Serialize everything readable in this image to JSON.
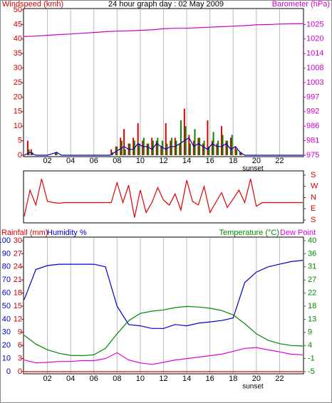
{
  "chart_data": [
    {
      "type": "bar",
      "title": "24 hour graph day : 02 May 2009",
      "ylabel": "Windspeed (kmh)",
      "y2label": "Barometer (hPa)",
      "y_color": "#cc0000",
      "y2_color": "#cc00cc",
      "grid": true,
      "xlim": [
        0,
        24
      ],
      "xticks": [
        {
          "value": 2,
          "label": "02"
        },
        {
          "value": 4,
          "label": "04"
        },
        {
          "value": 6,
          "label": "06"
        },
        {
          "value": 8,
          "label": "08"
        },
        10,
        12,
        14,
        16,
        18,
        20,
        22
      ],
      "sunset": {
        "value": 19.7,
        "label": "sunset"
      },
      "ylim": [
        0,
        50
      ],
      "yticks": [
        0,
        5,
        10,
        15,
        20,
        25,
        30,
        35,
        40,
        45,
        50
      ],
      "y2lim": [
        975,
        1030.6
      ],
      "y2ticks": [
        975,
        {
          "value": 980.6,
          "label": "981"
        },
        {
          "value": 986.1,
          "label": "986"
        },
        {
          "value": 991.7,
          "label": "992"
        },
        {
          "value": 997.2,
          "label": "997"
        },
        {
          "value": 1002.8,
          "label": "1003"
        },
        {
          "value": 1008.3,
          "label": "1008"
        },
        {
          "value": 1013.9,
          "label": "1014"
        },
        {
          "value": 1019.5,
          "label": "1020"
        },
        1025
      ],
      "series": [
        {
          "kind": "bar",
          "color": "#dd0000",
          "axis": "y",
          "x": [
            0.3,
            0.6,
            2.7,
            7.5,
            7.9,
            8.3,
            8.6,
            9.0,
            9.4,
            9.8,
            10.2,
            10.6,
            11.0,
            11.4,
            11.8,
            12.2,
            12.6,
            13.0,
            13.4,
            13.8,
            14.2,
            14.6,
            15.0,
            15.4,
            15.8,
            16.2,
            16.6,
            17.0,
            17.4,
            17.8,
            18.2,
            18.6
          ],
          "values": [
            5,
            2,
            1,
            2,
            3,
            6,
            9,
            4,
            6,
            11,
            5,
            4,
            6,
            5,
            3,
            11,
            5,
            6,
            4,
            16,
            7,
            5,
            6,
            4,
            12,
            5,
            4,
            10,
            5,
            6,
            3,
            1
          ]
        },
        {
          "kind": "bar",
          "color": "#008800",
          "axis": "y",
          "x": [
            0.4,
            0.7,
            2.8,
            7.6,
            8.0,
            8.4,
            8.7,
            9.1,
            9.5,
            9.9,
            10.3,
            10.7,
            11.1,
            11.5,
            11.9,
            12.3,
            12.7,
            13.1,
            13.5,
            13.9,
            14.3,
            14.7,
            15.1,
            15.5,
            15.9,
            16.3,
            16.7,
            17.1,
            17.5,
            17.9,
            18.3,
            18.7
          ],
          "values": [
            2,
            1,
            1,
            1,
            3,
            5,
            2,
            4,
            5,
            4,
            6,
            4,
            5,
            6,
            5,
            4,
            6,
            5,
            12,
            10,
            4,
            9,
            6,
            5,
            3,
            8,
            5,
            7,
            5,
            7,
            2,
            1
          ]
        },
        {
          "kind": "line",
          "color": "#0000cc",
          "axis": "y",
          "x": [
            0,
            0.5,
            1,
            2,
            2.8,
            3.2,
            7.4,
            7.8,
            8.2,
            8.6,
            9.0,
            9.4,
            9.8,
            10.2,
            10.6,
            11.0,
            11.4,
            11.8,
            12.2,
            12.6,
            13.0,
            13.4,
            13.8,
            14.2,
            14.6,
            15.0,
            15.4,
            15.8,
            16.2,
            16.6,
            17.0,
            17.4,
            17.8,
            18.2,
            18.6,
            19.0,
            24
          ],
          "values": [
            0,
            1,
            0,
            0,
            1,
            0,
            0,
            1,
            2,
            3,
            2,
            2,
            4,
            3,
            3,
            2,
            4,
            3,
            2,
            3,
            3,
            4,
            5,
            6,
            3,
            4,
            3,
            2,
            4,
            3,
            3,
            4,
            2,
            3,
            1,
            0,
            0
          ]
        },
        {
          "kind": "line",
          "color": "#cc00cc",
          "axis": "y2",
          "x": [
            0,
            1,
            2,
            3,
            4,
            5,
            6,
            7,
            8,
            9,
            10,
            11,
            12,
            13,
            14,
            15,
            16,
            17,
            18,
            19,
            20,
            21,
            22,
            23,
            24
          ],
          "values": [
            1020.4,
            1020.6,
            1020.9,
            1021.2,
            1021.4,
            1021.7,
            1022.0,
            1022.3,
            1022.5,
            1022.6,
            1022.8,
            1023.0,
            1023.4,
            1023.6,
            1023.6,
            1023.8,
            1024.0,
            1024.2,
            1024.4,
            1024.6,
            1024.9,
            1025.0,
            1025.2,
            1025.3,
            1025.4
          ]
        }
      ]
    },
    {
      "type": "line",
      "y_color": "#cc0000",
      "xlim": [
        0,
        24
      ],
      "ylim": [
        180,
        -180
      ],
      "yticks": [
        {
          "value": 180,
          "label": "S"
        },
        {
          "value": 90,
          "label": "E"
        },
        {
          "value": 0,
          "label": "N"
        },
        {
          "value": -90,
          "label": "W"
        },
        {
          "value": -180,
          "label": "S"
        }
      ],
      "series": [
        {
          "kind": "line",
          "color": "#dd0000",
          "axis": "y",
          "x": [
            0,
            0.5,
            1,
            1.5,
            2,
            2.5,
            3,
            3.5,
            4,
            4.5,
            5,
            5.5,
            6,
            6.5,
            7,
            7.5,
            8,
            8.5,
            9,
            9.5,
            10,
            10.5,
            11,
            11.5,
            12,
            12.5,
            13,
            13.5,
            14,
            14.5,
            15,
            15.5,
            16,
            16.5,
            17,
            17.5,
            18,
            18.5,
            19,
            19.5,
            20,
            20.5,
            21,
            21.5,
            22,
            22.5,
            23,
            23.5,
            24
          ],
          "values": [
            150,
            -60,
            60,
            -150,
            30,
            40,
            45,
            40,
            40,
            40,
            40,
            40,
            40,
            40,
            40,
            40,
            -120,
            40,
            -100,
            160,
            -60,
            120,
            40,
            -80,
            20,
            60,
            -30,
            100,
            -140,
            30,
            60,
            -90,
            120,
            40,
            -40,
            80,
            10,
            -60,
            40,
            -150,
            70,
            40,
            40,
            40,
            40,
            40,
            40,
            40,
            40
          ]
        }
      ]
    },
    {
      "type": "line",
      "grid": true,
      "xlim": [
        0,
        24
      ],
      "xticks": [
        {
          "value": 2,
          "label": "02"
        },
        {
          "value": 4,
          "label": "04"
        },
        {
          "value": 6,
          "label": "06"
        },
        {
          "value": 8,
          "label": "08"
        },
        10,
        12,
        14,
        16,
        18,
        20,
        22
      ],
      "sunset": {
        "value": 19.7,
        "label": "sunset"
      },
      "ylim": [
        0,
        30
      ],
      "yticks": [
        0,
        3,
        6,
        9,
        12,
        15,
        18,
        21,
        24,
        27,
        30
      ],
      "y_color": "#cc0000",
      "hlim": [
        0,
        100
      ],
      "hticks": [
        0,
        10,
        20,
        30,
        40,
        50,
        60,
        70,
        80,
        90,
        100
      ],
      "h_color": "#0000cc",
      "y2lim": [
        -5,
        40
      ],
      "y2ticks": [
        -5,
        {
          "value": -0.5,
          "label": "-1"
        },
        4,
        {
          "value": 8.5,
          "label": "9"
        },
        13,
        {
          "value": 17.5,
          "label": "18"
        },
        22,
        {
          "value": 26.5,
          "label": "27"
        },
        31,
        {
          "value": 35.5,
          "label": "36"
        },
        40
      ],
      "y2_color": "#008800",
      "series": [
        {
          "name": "Rainfall (mm)",
          "kind": "line",
          "color": "#dd0000",
          "axis": "y",
          "x": [
            0,
            1,
            2,
            3,
            4,
            5,
            6,
            7,
            8,
            9,
            10,
            11,
            12,
            13,
            14,
            15,
            16,
            17,
            18,
            19,
            20,
            21,
            22,
            23,
            24
          ],
          "values": [
            0,
            0,
            0,
            0,
            0,
            0,
            0,
            0,
            0,
            0,
            0,
            0,
            0,
            0,
            0,
            0,
            0,
            0,
            0,
            0,
            0,
            0,
            0,
            0,
            0
          ]
        },
        {
          "name": "Humidity %",
          "kind": "line",
          "color": "#0000cc",
          "axis": "h",
          "x": [
            0,
            1,
            2,
            3,
            4,
            5,
            6,
            7,
            8,
            9,
            10,
            11,
            12,
            13,
            14,
            15,
            16,
            17,
            18,
            19,
            20,
            21,
            22,
            23,
            24
          ],
          "values": [
            55,
            78,
            81,
            82,
            82,
            82,
            82,
            80,
            50,
            36,
            35,
            33,
            33,
            36,
            35,
            37,
            38,
            39,
            41,
            68,
            76,
            80,
            82,
            84,
            85
          ]
        },
        {
          "name": "Temperature (°C)",
          "kind": "line",
          "color": "#008800",
          "axis": "y2",
          "x": [
            0,
            1,
            2,
            3,
            4,
            5,
            6,
            7,
            8,
            9,
            10,
            11,
            12,
            13,
            14,
            15,
            16,
            17,
            18,
            19,
            20,
            21,
            22,
            23,
            24
          ],
          "values": [
            7.5,
            4.5,
            2.5,
            1.3,
            0.6,
            0.5,
            0.8,
            3,
            8,
            12.5,
            15,
            15.8,
            16.2,
            17,
            17.4,
            17.2,
            16.8,
            16,
            14.5,
            11.5,
            8,
            5.8,
            4.6,
            4,
            3.8
          ]
        },
        {
          "name": "Dew Point",
          "kind": "line",
          "color": "#dd00dd",
          "axis": "y2",
          "x": [
            0,
            1,
            2,
            3,
            4,
            5,
            6,
            7,
            8,
            9,
            10,
            11,
            12,
            13,
            14,
            15,
            16,
            17,
            18,
            19,
            20,
            21,
            22,
            23,
            24
          ],
          "values": [
            -1,
            -2,
            -1.8,
            -1.5,
            -1.5,
            -1.2,
            -1.2,
            -0.5,
            1.5,
            -1,
            -2,
            -2.5,
            -1.8,
            -1,
            -0.5,
            0,
            0.5,
            1,
            2,
            3,
            3.3,
            2.5,
            1.8,
            1,
            0.8
          ]
        }
      ]
    }
  ]
}
